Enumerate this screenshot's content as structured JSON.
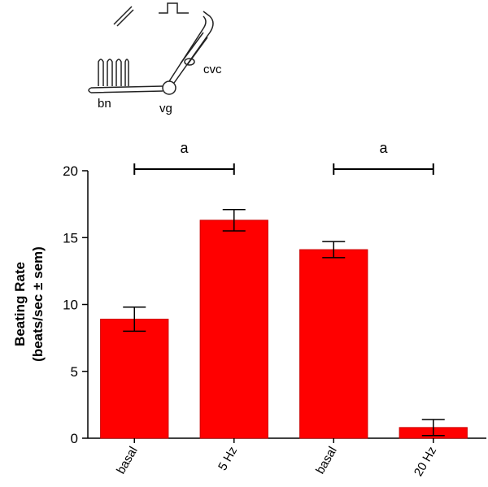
{
  "diagram": {
    "labels": [
      "bn",
      "vg",
      "cvc"
    ]
  },
  "chart_data": {
    "type": "bar",
    "y_label": [
      "Beating Rate",
      "(beats/sec ± sem)"
    ],
    "categories": [
      "basal",
      "5 Hz",
      "basal",
      "20 Hz"
    ],
    "values": [
      8.9,
      16.3,
      14.1,
      0.8
    ],
    "errors": [
      0.9,
      0.8,
      0.6,
      0.6
    ],
    "color": "#ff0000",
    "ylim": [
      0,
      20
    ],
    "yticks": [
      0,
      5,
      10,
      15,
      20
    ],
    "annotations": [
      {
        "label": "a",
        "categories": [
          0,
          1
        ]
      },
      {
        "label": "a",
        "categories": [
          2,
          3
        ]
      }
    ]
  }
}
